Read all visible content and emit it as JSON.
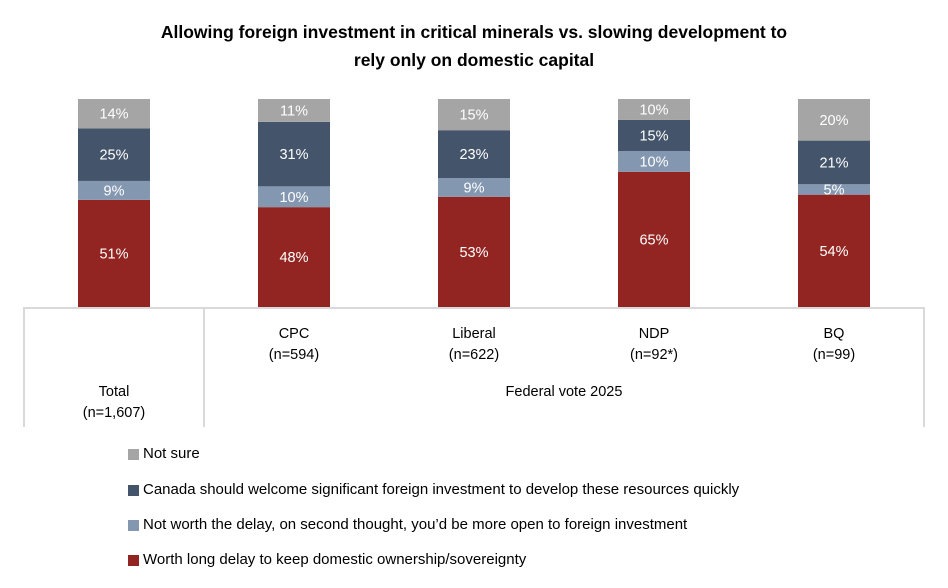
{
  "chart_data": {
    "type": "bar",
    "stacked": true,
    "title": "Allowing foreign investment in critical minerals vs. slowing development to rely only on domestic capital",
    "title_lines": [
      "Allowing foreign investment in critical minerals vs. slowing development to",
      "rely only on domestic capital"
    ],
    "xlabel": "",
    "ylabel": "",
    "ylim": [
      0,
      100
    ],
    "grid": false,
    "legend_position": "bottom",
    "categories": [
      "Total",
      "CPC",
      "Liberal",
      "NDP",
      "BQ"
    ],
    "category_labels": [
      {
        "name": "Total",
        "n": "(n=1,607)"
      },
      {
        "name": "CPC",
        "n": "(n=594)"
      },
      {
        "name": "Liberal",
        "n": "(n=622)"
      },
      {
        "name": "NDP",
        "n": "(n=92*)"
      },
      {
        "name": "BQ",
        "n": "(n=99)"
      }
    ],
    "group_label": "Federal vote 2025",
    "series": [
      {
        "name": "Worth long delay to keep domestic ownership/sovereignty",
        "color": "#922521",
        "values": [
          51,
          48,
          53,
          65,
          54
        ]
      },
      {
        "name": "Not worth the delay, on second thought, you’d be more open to foreign investment",
        "color": "#8497b0",
        "values": [
          9,
          10,
          9,
          10,
          5
        ]
      },
      {
        "name": "Canada should welcome significant foreign investment to develop these resources quickly",
        "color": "#44546a",
        "values": [
          25,
          31,
          23,
          15,
          21
        ]
      },
      {
        "name": "Not sure",
        "color": "#a5a5a5",
        "values": [
          14,
          11,
          15,
          10,
          20
        ]
      }
    ],
    "legend_order": [
      "Not sure",
      "Canada should welcome significant foreign investment to develop these resources quickly",
      "Not worth the delay, on second thought, you’d be more open to foreign investment",
      "Worth long delay to keep domestic ownership/sovereignty"
    ],
    "value_suffix": "%"
  }
}
